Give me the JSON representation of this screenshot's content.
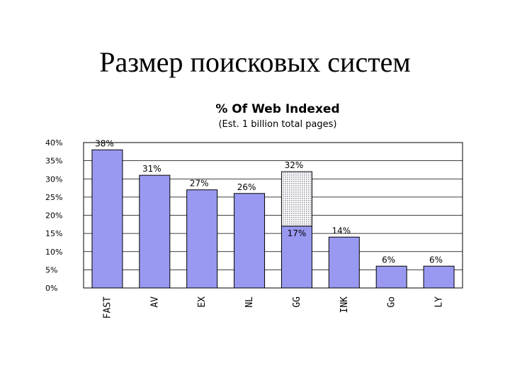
{
  "slide": {
    "title": "Размер поисковых систем"
  },
  "chart_data": {
    "type": "bar",
    "title": "% Of Web Indexed",
    "subtitle": "(Est. 1 billion total pages)",
    "xlabel": "",
    "ylabel": "",
    "categories": [
      "FAST",
      "AV",
      "EX",
      "NL",
      "GG",
      "INK",
      "Go",
      "LY"
    ],
    "values": [
      38,
      31,
      27,
      26,
      32,
      14,
      6,
      6
    ],
    "value_labels": [
      "38%",
      "31%",
      "27%",
      "26%",
      "32%",
      "14%",
      "6%",
      "6%"
    ],
    "segments": [
      {
        "category": "GG",
        "solid_value": 17,
        "solid_label": "17%",
        "total": 32
      }
    ],
    "ylim": [
      0,
      40
    ],
    "yticks": [
      0,
      5,
      10,
      15,
      20,
      25,
      30,
      35,
      40
    ],
    "ytick_labels": [
      "0%",
      "5%",
      "10%",
      "15%",
      "20%",
      "25%",
      "30%",
      "35%",
      "40%"
    ],
    "grid": true,
    "legend": "none",
    "colors": {
      "bar": "#9999f2",
      "bar_stroke": "#000000",
      "uncertain_fill": "#e2e2ec",
      "grid": "#000000"
    }
  }
}
